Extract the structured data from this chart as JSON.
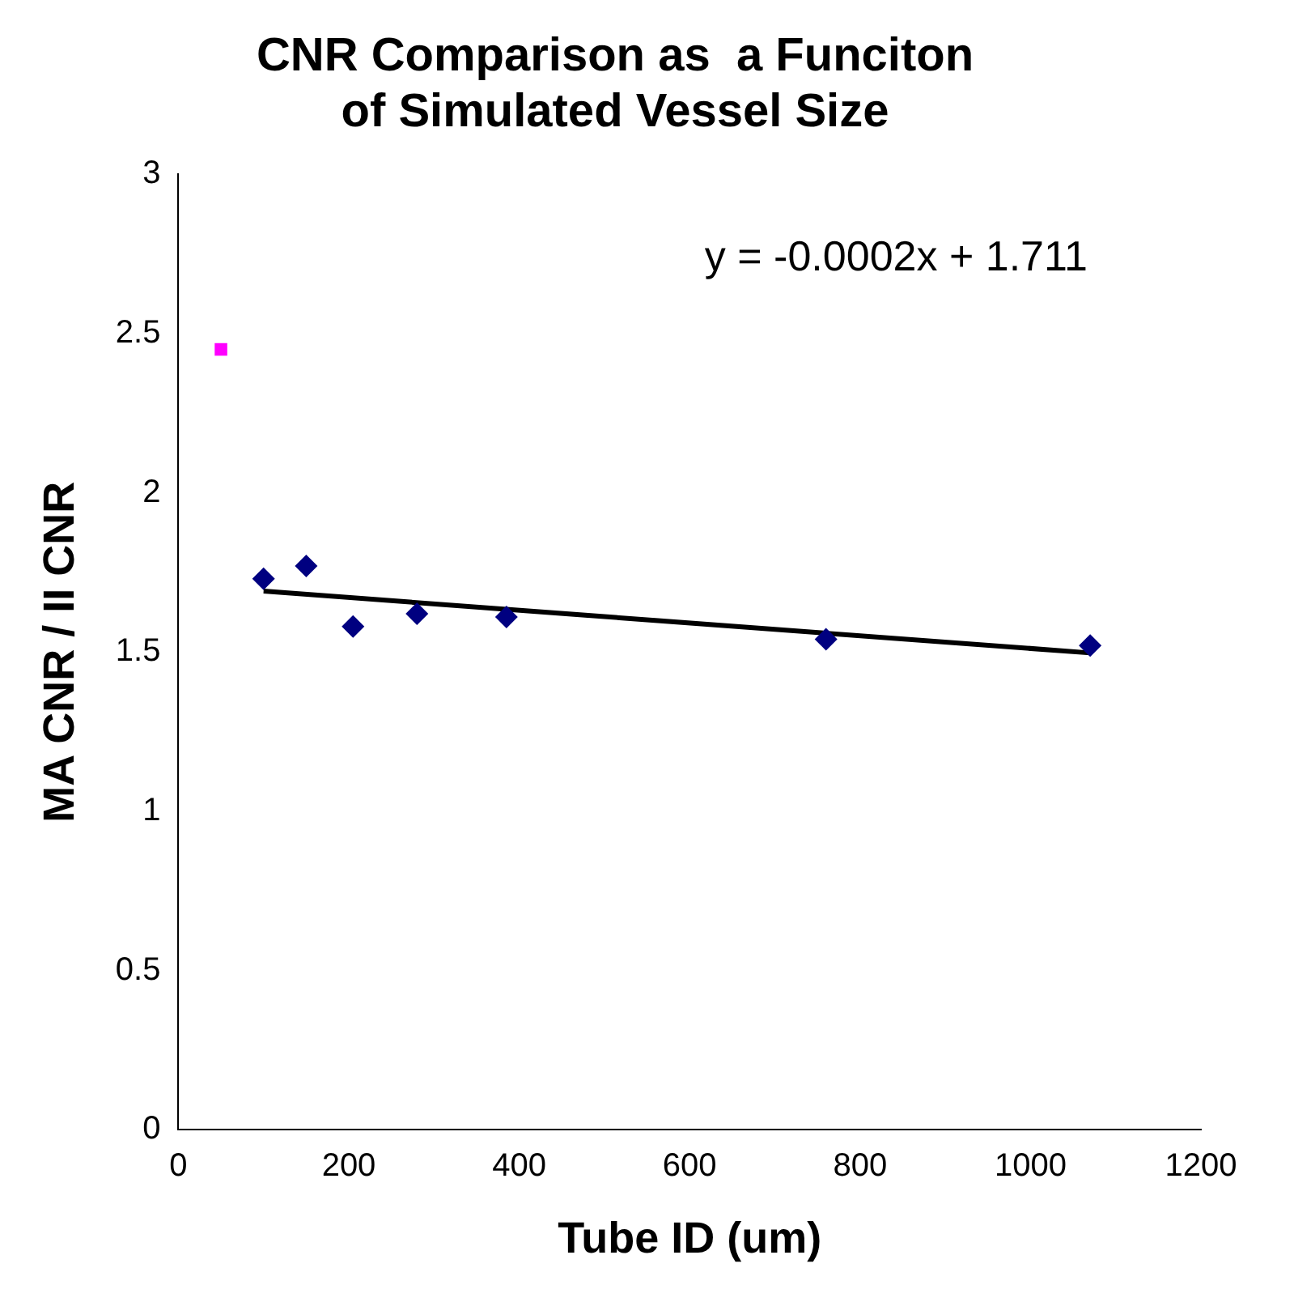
{
  "chart_data": {
    "type": "scatter",
    "title": "CNR Comparison as  a Funciton of Simulated Vessel Size",
    "xlabel": "Tube ID (um)",
    "ylabel": "MA CNR / II CNR",
    "xlim": [
      0,
      1200
    ],
    "xticks": [
      0,
      200,
      400,
      600,
      800,
      1000,
      1200
    ],
    "ylim": [
      0,
      3
    ],
    "yticks": [
      0,
      0.5,
      1,
      1.5,
      2,
      2.5,
      3
    ],
    "grid": false,
    "legend": false,
    "annotations": [
      "y = -0.0002x + 1.711"
    ],
    "series": [
      {
        "color": "#000080",
        "marker": "diamond",
        "x": [
          100,
          150,
          205,
          280,
          385,
          760,
          1070
        ],
        "values": [
          1.73,
          1.77,
          1.58,
          1.62,
          1.61,
          1.54,
          1.52
        ]
      },
      {
        "color": "#ff00ff",
        "marker": "square",
        "x": [
          50
        ],
        "values": [
          2.45
        ]
      },
      {
        "type": "line",
        "color": "#000000",
        "marker": "none",
        "line_style": "solid",
        "x": [
          100,
          1070
        ],
        "values": [
          1.691,
          1.497
        ]
      }
    ]
  }
}
